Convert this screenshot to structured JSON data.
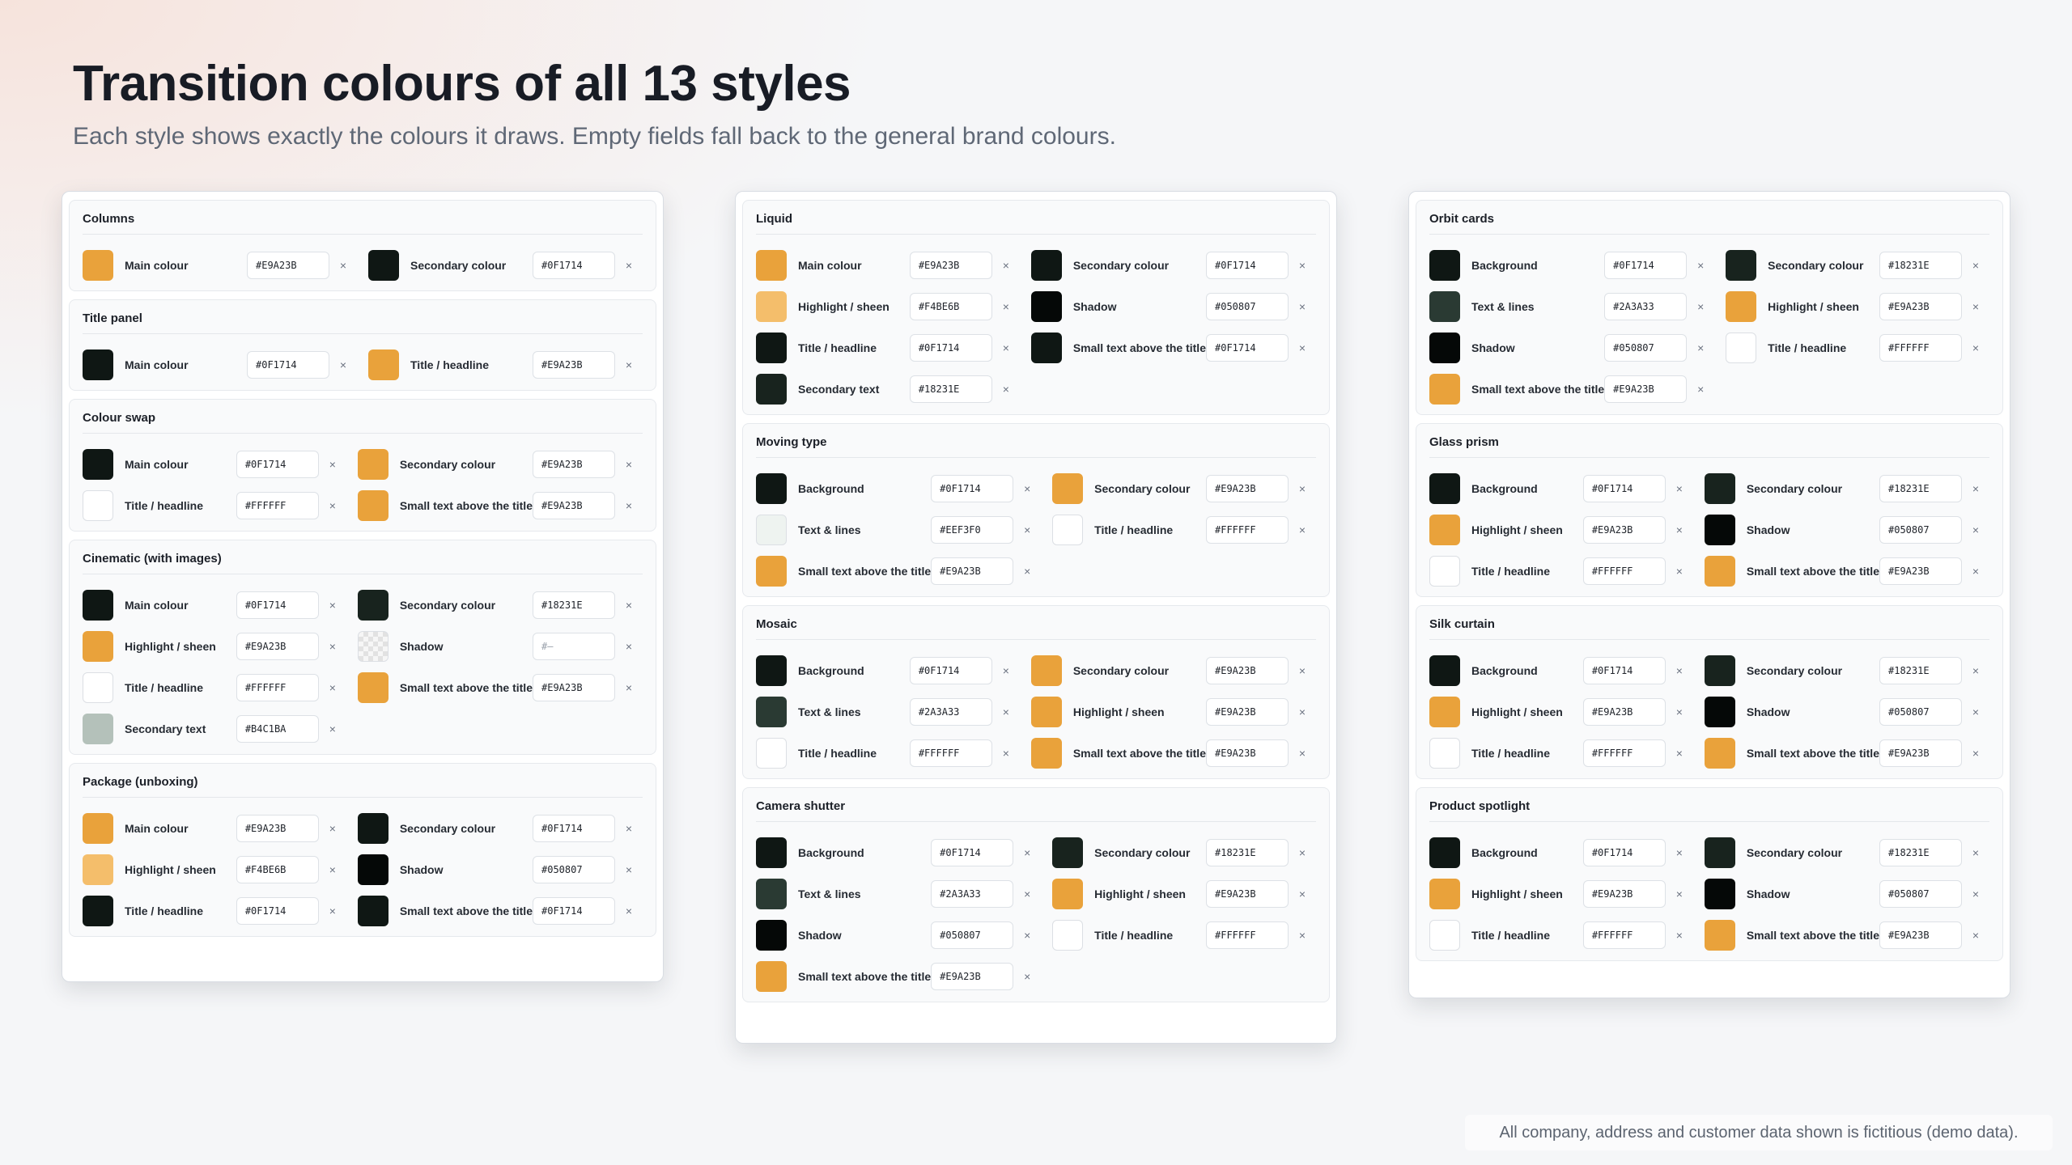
{
  "header": {
    "title": "Transition colours of all 13 styles",
    "subtitle": "Each style shows exactly the colours it draws. Empty fields fall back to the general brand colours."
  },
  "footer": {
    "note": "All company, address and customer data shown is fictitious (demo data)."
  },
  "clear_symbol": "×",
  "columns": [
    {
      "sections": [
        {
          "title": "Columns",
          "fields": [
            {
              "label": "Main colour",
              "hex": "#E9A23B"
            },
            {
              "label": "Secondary colour",
              "hex": "#0F1714"
            }
          ]
        },
        {
          "title": "Title panel",
          "fields": [
            {
              "label": "Main colour",
              "hex": "#0F1714"
            },
            {
              "label": "Title / headline",
              "hex": "#E9A23B"
            }
          ]
        },
        {
          "title": "Colour swap",
          "fields": [
            {
              "label": "Main colour",
              "hex": "#0F1714"
            },
            {
              "label": "Secondary colour",
              "hex": "#E9A23B"
            },
            {
              "label": "Title / headline",
              "hex": "#FFFFFF"
            },
            {
              "label": "Small text above the title",
              "hex": "#E9A23B"
            }
          ]
        },
        {
          "title": "Cinematic (with images)",
          "fields": [
            {
              "label": "Main colour",
              "hex": "#0F1714"
            },
            {
              "label": "Secondary colour",
              "hex": "#18231E"
            },
            {
              "label": "Highlight / sheen",
              "hex": "#E9A23B"
            },
            {
              "label": "Shadow",
              "hex": "",
              "placeholder": "#—"
            },
            {
              "label": "Title / headline",
              "hex": "#FFFFFF"
            },
            {
              "label": "Small text above the title",
              "hex": "#E9A23B"
            },
            {
              "label": "Secondary text",
              "hex": "#B4C1BA"
            }
          ]
        },
        {
          "title": "Package (unboxing)",
          "fields": [
            {
              "label": "Main colour",
              "hex": "#E9A23B"
            },
            {
              "label": "Secondary colour",
              "hex": "#0F1714"
            },
            {
              "label": "Highlight / sheen",
              "hex": "#F4BE6B"
            },
            {
              "label": "Shadow",
              "hex": "#050807"
            },
            {
              "label": "Title / headline",
              "hex": "#0F1714"
            },
            {
              "label": "Small text above the title",
              "hex": "#0F1714"
            }
          ]
        }
      ]
    },
    {
      "sections": [
        {
          "title": "Liquid",
          "fields": [
            {
              "label": "Main colour",
              "hex": "#E9A23B"
            },
            {
              "label": "Secondary colour",
              "hex": "#0F1714"
            },
            {
              "label": "Highlight / sheen",
              "hex": "#F4BE6B"
            },
            {
              "label": "Shadow",
              "hex": "#050807"
            },
            {
              "label": "Title / headline",
              "hex": "#0F1714"
            },
            {
              "label": "Small text above the title",
              "hex": "#0F1714"
            },
            {
              "label": "Secondary text",
              "hex": "#18231E"
            }
          ]
        },
        {
          "title": "Moving type",
          "fields": [
            {
              "label": "Background",
              "hex": "#0F1714"
            },
            {
              "label": "Secondary colour",
              "hex": "#E9A23B"
            },
            {
              "label": "Text & lines",
              "hex": "#EEF3F0"
            },
            {
              "label": "Title / headline",
              "hex": "#FFFFFF"
            },
            {
              "label": "Small text above the title",
              "hex": "#E9A23B"
            }
          ]
        },
        {
          "title": "Mosaic",
          "fields": [
            {
              "label": "Background",
              "hex": "#0F1714"
            },
            {
              "label": "Secondary colour",
              "hex": "#E9A23B"
            },
            {
              "label": "Text & lines",
              "hex": "#2A3A33"
            },
            {
              "label": "Highlight / sheen",
              "hex": "#E9A23B"
            },
            {
              "label": "Title / headline",
              "hex": "#FFFFFF"
            },
            {
              "label": "Small text above the title",
              "hex": "#E9A23B"
            }
          ]
        },
        {
          "title": "Camera shutter",
          "fields": [
            {
              "label": "Background",
              "hex": "#0F1714"
            },
            {
              "label": "Secondary colour",
              "hex": "#18231E"
            },
            {
              "label": "Text & lines",
              "hex": "#2A3A33"
            },
            {
              "label": "Highlight / sheen",
              "hex": "#E9A23B"
            },
            {
              "label": "Shadow",
              "hex": "#050807"
            },
            {
              "label": "Title / headline",
              "hex": "#FFFFFF"
            },
            {
              "label": "Small text above the title",
              "hex": "#E9A23B"
            }
          ]
        }
      ]
    },
    {
      "sections": [
        {
          "title": "Orbit cards",
          "fields": [
            {
              "label": "Background",
              "hex": "#0F1714"
            },
            {
              "label": "Secondary colour",
              "hex": "#18231E"
            },
            {
              "label": "Text & lines",
              "hex": "#2A3A33"
            },
            {
              "label": "Highlight / sheen",
              "hex": "#E9A23B"
            },
            {
              "label": "Shadow",
              "hex": "#050807"
            },
            {
              "label": "Title / headline",
              "hex": "#FFFFFF"
            },
            {
              "label": "Small text above the title",
              "hex": "#E9A23B"
            }
          ]
        },
        {
          "title": "Glass prism",
          "fields": [
            {
              "label": "Background",
              "hex": "#0F1714"
            },
            {
              "label": "Secondary colour",
              "hex": "#18231E"
            },
            {
              "label": "Highlight / sheen",
              "hex": "#E9A23B"
            },
            {
              "label": "Shadow",
              "hex": "#050807"
            },
            {
              "label": "Title / headline",
              "hex": "#FFFFFF"
            },
            {
              "label": "Small text above the title",
              "hex": "#E9A23B"
            }
          ]
        },
        {
          "title": "Silk curtain",
          "fields": [
            {
              "label": "Background",
              "hex": "#0F1714"
            },
            {
              "label": "Secondary colour",
              "hex": "#18231E"
            },
            {
              "label": "Highlight / sheen",
              "hex": "#E9A23B"
            },
            {
              "label": "Shadow",
              "hex": "#050807"
            },
            {
              "label": "Title / headline",
              "hex": "#FFFFFF"
            },
            {
              "label": "Small text above the title",
              "hex": "#E9A23B"
            }
          ]
        },
        {
          "title": "Product spotlight",
          "fields": [
            {
              "label": "Background",
              "hex": "#0F1714"
            },
            {
              "label": "Secondary colour",
              "hex": "#18231E"
            },
            {
              "label": "Highlight / sheen",
              "hex": "#E9A23B"
            },
            {
              "label": "Shadow",
              "hex": "#050807"
            },
            {
              "label": "Title / headline",
              "hex": "#FFFFFF"
            },
            {
              "label": "Small text above the title",
              "hex": "#E9A23B"
            }
          ]
        }
      ]
    }
  ]
}
